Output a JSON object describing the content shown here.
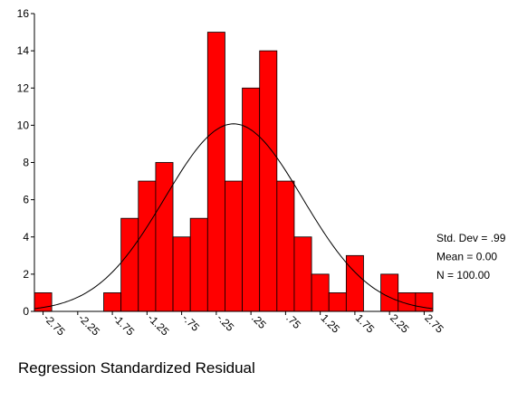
{
  "chart_data": {
    "type": "histogram",
    "x_label": "Regression Standardized Residual",
    "bins": [
      -2.875,
      -2.625,
      -2.375,
      -2.125,
      -1.875,
      -1.625,
      -1.375,
      -1.125,
      -0.875,
      -0.625,
      -0.375,
      -0.125,
      0.125,
      0.375,
      0.625,
      0.875,
      1.125,
      1.375,
      1.625,
      1.875,
      2.125,
      2.375,
      2.625,
      2.875
    ],
    "values": [
      1,
      0,
      0,
      0,
      1,
      5,
      7,
      8,
      4,
      5,
      15,
      7,
      12,
      14,
      7,
      4,
      2,
      1,
      3,
      0,
      2,
      1,
      1
    ],
    "color": "#ff0000",
    "xlim": [
      -2.875,
      2.875
    ],
    "xticks": [
      -2.75,
      -2.25,
      -1.75,
      -1.25,
      {
        "value": -0.75,
        "label": "-.75"
      },
      {
        "value": -0.25,
        "label": "-.25"
      },
      {
        "value": 0.25,
        "label": ".25"
      },
      {
        "value": 0.75,
        "label": ".75"
      },
      1.25,
      1.75,
      2.25,
      2.75
    ],
    "ylim": [
      0,
      16
    ],
    "yticks": [
      0,
      2,
      4,
      6,
      8,
      10,
      12,
      14,
      16
    ],
    "stats": {
      "std": 0.99,
      "mean": 0,
      "n": 100,
      "labels": [
        "Std. Dev = .99",
        "Mean = 0.00",
        "N = 100.00"
      ]
    }
  }
}
